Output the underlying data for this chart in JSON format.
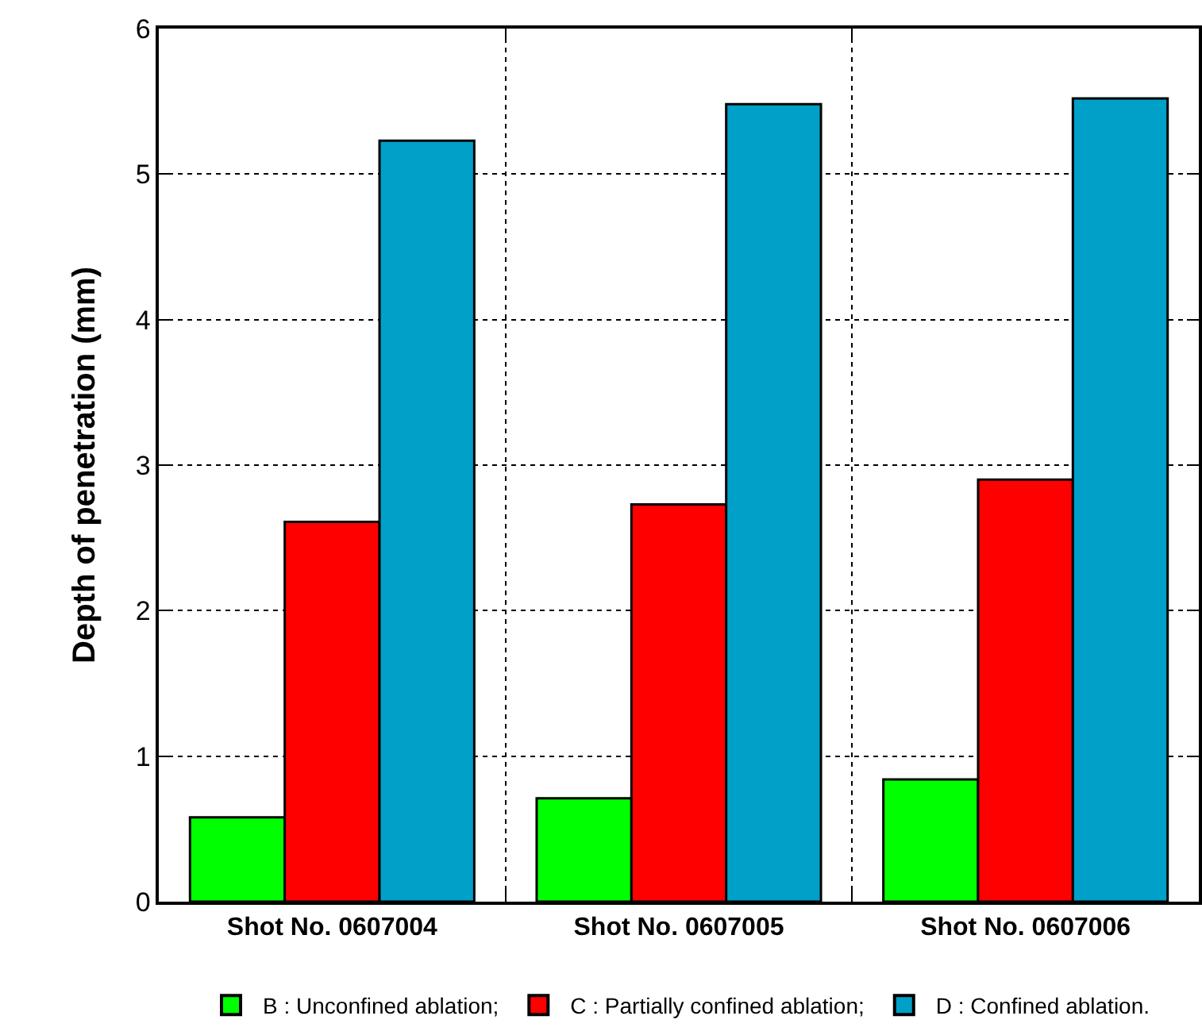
{
  "chart_data": {
    "type": "bar",
    "ylabel": "Depth of penetration (mm)",
    "categories": [
      "Shot No. 0607004",
      "Shot No. 0607005",
      "Shot No. 0607006"
    ],
    "series": [
      {
        "name": "B : Unconfined ablation;",
        "color": "#00ff00",
        "values": [
          0.58,
          0.71,
          0.84
        ]
      },
      {
        "name": "C : Partially confined ablation;",
        "color": "#ff0000",
        "values": [
          2.61,
          2.73,
          2.9
        ]
      },
      {
        "name": "D : Confined ablation.",
        "color": "#00a0c8",
        "values": [
          5.23,
          5.48,
          5.52
        ]
      }
    ],
    "ylim": [
      0,
      6
    ],
    "yticks": [
      0,
      1,
      2,
      3,
      4,
      5,
      6
    ],
    "grid": true,
    "legend": "bottom"
  }
}
